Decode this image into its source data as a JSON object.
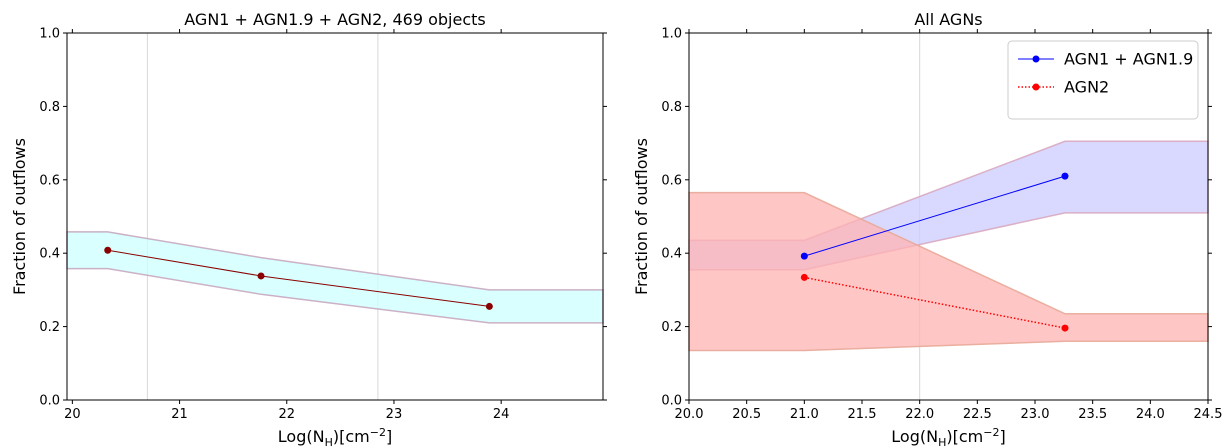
{
  "chart_data": [
    {
      "type": "line",
      "title": "AGN1 + AGN1.9 + AGN2, 469 objects",
      "xlabel": "Log(N_H)[cm^-2]",
      "ylabel": "Fraction of outflows",
      "xlim": [
        19.95,
        24.95
      ],
      "ylim": [
        0.0,
        1.0
      ],
      "xticks": [
        "20",
        "21",
        "22",
        "23",
        "24"
      ],
      "yticks": [
        "0.0",
        "0.2",
        "0.4",
        "0.6",
        "0.8",
        "1.0"
      ],
      "vlines": [
        20.7,
        22.85
      ],
      "grid": false,
      "series": [
        {
          "x": [
            20.33,
            21.76,
            23.89
          ],
          "y": [
            0.408,
            0.338,
            0.255
          ],
          "band_x": [
            19.95,
            20.33,
            21.76,
            23.89,
            24.95
          ],
          "band_lower": [
            0.358,
            0.358,
            0.288,
            0.21,
            0.21
          ],
          "band_upper": [
            0.458,
            0.458,
            0.388,
            0.3,
            0.3
          ],
          "line_color": "#8b0000",
          "marker_color": "#8b0000",
          "band_color": "#ccffff",
          "band_edge": "#c8a8c0",
          "linestyle": "solid"
        }
      ]
    },
    {
      "type": "line",
      "title": "All AGNs",
      "xlabel": "Log(N_H)[cm^-2]",
      "ylabel": "Fraction of outflows",
      "xlim": [
        20.0,
        24.5
      ],
      "ylim": [
        0.0,
        1.0
      ],
      "xticks": [
        "20.0",
        "20.5",
        "21.0",
        "21.5",
        "22.0",
        "22.5",
        "23.0",
        "23.5",
        "24.0",
        "24.5"
      ],
      "yticks": [
        "0.0",
        "0.2",
        "0.4",
        "0.6",
        "0.8",
        "1.0"
      ],
      "vlines": [
        22.0
      ],
      "grid": false,
      "legend": "top-right",
      "series": [
        {
          "name": "AGN1 + AGN1.9",
          "x": [
            21.0,
            23.26
          ],
          "y": [
            0.392,
            0.61
          ],
          "band_x": [
            20.0,
            21.0,
            23.26,
            24.5
          ],
          "band_lower": [
            0.355,
            0.355,
            0.51,
            0.51
          ],
          "band_upper": [
            0.435,
            0.435,
            0.705,
            0.705
          ],
          "line_color": "#0000ff",
          "marker_color": "#0000ff",
          "band_color": "#ccccff",
          "band_edge": "#d8a8c0",
          "linestyle": "solid"
        },
        {
          "name": "AGN2",
          "x": [
            21.0,
            23.26
          ],
          "y": [
            0.334,
            0.196
          ],
          "band_x": [
            20.0,
            21.0,
            23.26,
            24.5
          ],
          "band_lower": [
            0.135,
            0.135,
            0.16,
            0.16
          ],
          "band_upper": [
            0.565,
            0.565,
            0.235,
            0.235
          ],
          "line_color": "#ff0000",
          "marker_color": "#ff0000",
          "band_color": "#ffb3b3",
          "band_edge": "#e8a898",
          "linestyle": "dotted"
        }
      ]
    }
  ]
}
